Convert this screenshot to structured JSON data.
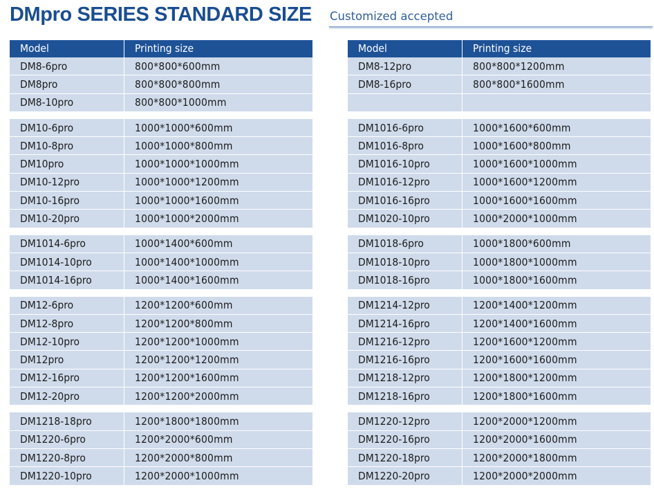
{
  "header": {
    "title": "DMpro SERIES STANDARD SIZE",
    "subtitle": "Customized accepted"
  },
  "columns": {
    "model": "Model",
    "size": "Printing size"
  },
  "left_groups": [
    [
      [
        "DM8-6pro",
        "800*800*600mm"
      ],
      [
        "DM8pro",
        "800*800*800mm"
      ],
      [
        "DM8-10pro",
        "800*800*1000mm"
      ]
    ],
    [
      [
        "DM10-6pro",
        "1000*1000*600mm"
      ],
      [
        "DM10-8pro",
        "1000*1000*800mm"
      ],
      [
        "DM10pro",
        "1000*1000*1000mm"
      ],
      [
        "DM10-12pro",
        "1000*1000*1200mm"
      ],
      [
        "DM10-16pro",
        "1000*1000*1600mm"
      ],
      [
        "DM10-20pro",
        "1000*1000*2000mm"
      ]
    ],
    [
      [
        "DM1014-6pro",
        "1000*1400*600mm"
      ],
      [
        "DM1014-10pro",
        "1000*1400*1000mm"
      ],
      [
        "DM1014-16pro",
        "1000*1400*1600mm"
      ]
    ],
    [
      [
        "DM12-6pro",
        "1200*1200*600mm"
      ],
      [
        "DM12-8pro",
        "1200*1200*800mm"
      ],
      [
        "DM12-10pro",
        "1200*1200*1000mm"
      ],
      [
        "DM12pro",
        "1200*1200*1200mm"
      ],
      [
        "DM12-16pro",
        "1200*1200*1600mm"
      ],
      [
        "DM12-20pro",
        "1200*1200*2000mm"
      ]
    ],
    [
      [
        "DM1218-18pro",
        "1200*1800*1800mm"
      ],
      [
        "DM1220-6pro",
        "1200*2000*600mm"
      ],
      [
        "DM1220-8pro",
        "1200*2000*800mm"
      ],
      [
        "DM1220-10pro",
        "1200*2000*1000mm"
      ]
    ]
  ],
  "right_groups": [
    [
      [
        "DM8-12pro",
        "800*800*1200mm"
      ],
      [
        "DM8-16pro",
        "800*800*1600mm"
      ],
      [
        "",
        ""
      ]
    ],
    [
      [
        "DM1016-6pro",
        "1000*1600*600mm"
      ],
      [
        "DM1016-8pro",
        "1000*1600*800mm"
      ],
      [
        "DM1016-10pro",
        "1000*1600*1000mm"
      ],
      [
        "DM1016-12pro",
        "1000*1600*1200mm"
      ],
      [
        "DM1016-16pro",
        "1000*1600*1600mm"
      ],
      [
        "DM1020-10pro",
        "1000*2000*1000mm"
      ]
    ],
    [
      [
        "DM1018-6pro",
        "1000*1800*600mm"
      ],
      [
        "DM1018-10pro",
        "1000*1800*1000mm"
      ],
      [
        "DM1018-16pro",
        "1000*1800*1600mm"
      ]
    ],
    [
      [
        "DM1214-12pro",
        "1200*1400*1200mm"
      ],
      [
        "DM1214-16pro",
        "1200*1400*1600mm"
      ],
      [
        "DM1216-12pro",
        "1200*1600*1200mm"
      ],
      [
        "DM1216-16pro",
        "1200*1600*1600mm"
      ],
      [
        "DM1218-12pro",
        "1200*1800*1200mm"
      ],
      [
        "DM1218-16pro",
        "1200*1800*1600mm"
      ]
    ],
    [
      [
        "DM1220-12pro",
        "1200*2000*1200mm"
      ],
      [
        "DM1220-16pro",
        "1200*2000*1600mm"
      ],
      [
        "DM1220-18pro",
        "1200*2000*1800mm"
      ],
      [
        "DM1220-20pro",
        "1200*2000*2000mm"
      ]
    ]
  ]
}
